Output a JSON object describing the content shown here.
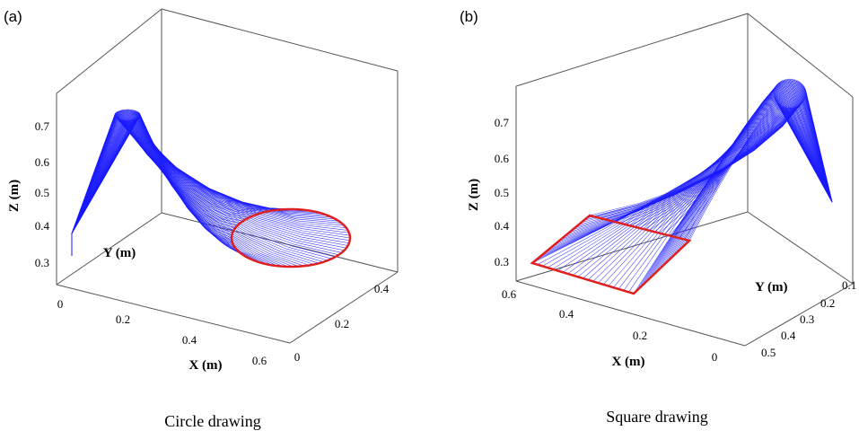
{
  "panels": [
    {
      "tag": "(a)",
      "caption": "Circle drawing",
      "axes": {
        "zlabel": "Z (m)",
        "ylabel": "Y (m)",
        "xlabel": "X (m)",
        "zticks": [
          "0.7",
          "0.6",
          "0.5",
          "0.4",
          "0.3"
        ],
        "xticks": [
          "0",
          "0.2",
          "0.4",
          "0.6"
        ],
        "yticks": [
          "0",
          "0.2",
          "0.4"
        ]
      }
    },
    {
      "tag": "(b)",
      "caption": "Square drawing",
      "axes": {
        "zlabel": "Z (m)",
        "ylabel": "Y (m)",
        "xlabel": "X (m)",
        "zticks": [
          "0.7",
          "0.6",
          "0.5",
          "0.4",
          "0.3"
        ],
        "xticks": [
          "0.6",
          "0.4",
          "0.2",
          "0"
        ],
        "yticks": [
          "0.1",
          "0.2",
          "0.3",
          "0.4",
          "0.5"
        ]
      }
    }
  ],
  "colors": {
    "sweep": "#1a1aff",
    "path": "#e02020",
    "box": "#555555"
  },
  "chart_data": [
    {
      "type": "scatter",
      "title": "Circle drawing",
      "zlim": [
        0.3,
        0.7
      ],
      "grid": false
    },
    {
      "type": "scatter",
      "title": "Square drawing",
      "zlim": [
        0.3,
        0.7
      ],
      "grid": false
    }
  ]
}
